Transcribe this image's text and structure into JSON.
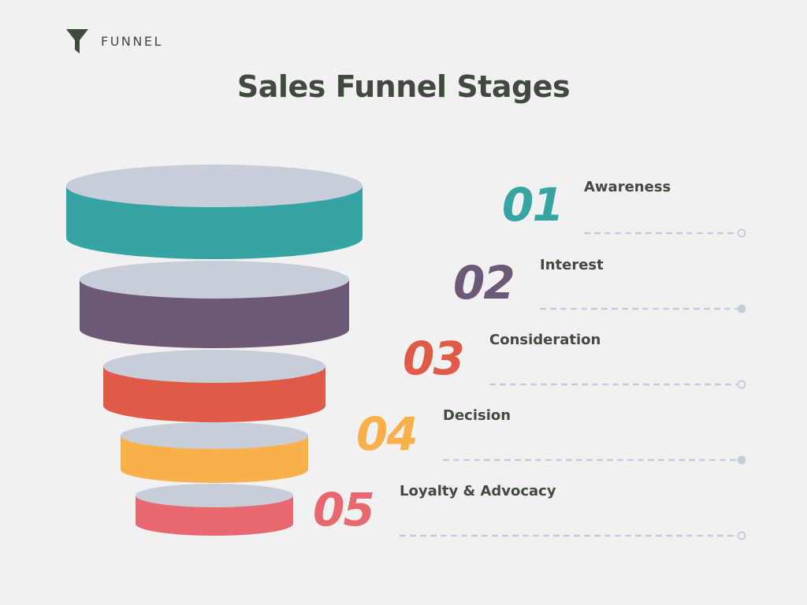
{
  "brand": {
    "text": "FUNNEL",
    "icon": "funnel-icon"
  },
  "title": "Sales Funnel Stages",
  "colors": {
    "background": "#f0f1f0",
    "disc_top": "#c8ced8",
    "text": "#414a3e",
    "line": "#c8ccd8"
  },
  "stages": [
    {
      "number": "01",
      "label": "Awareness",
      "color": "#36a4a5"
    },
    {
      "number": "02",
      "label": "Interest",
      "color": "#6c5877"
    },
    {
      "number": "03",
      "label": "Consideration",
      "color": "#e05a48"
    },
    {
      "number": "04",
      "label": "Decision",
      "color": "#f8b04a"
    },
    {
      "number": "05",
      "label": "Loyalty & Advocacy",
      "color": "#e86870"
    }
  ]
}
